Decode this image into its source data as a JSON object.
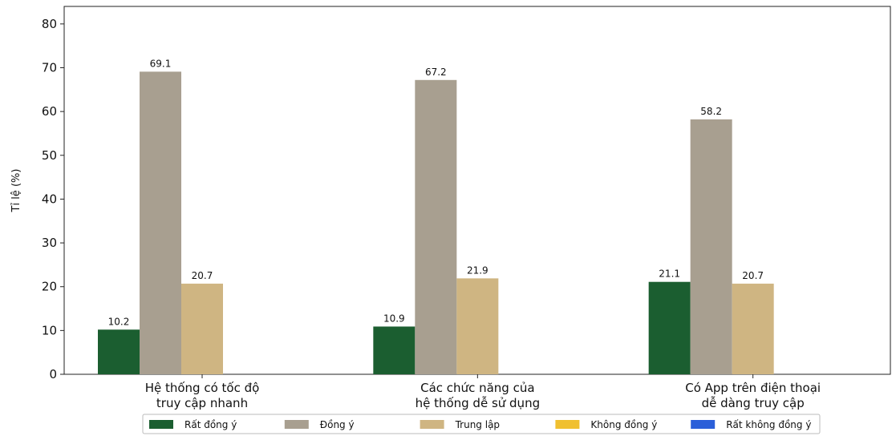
{
  "chart_data": {
    "type": "bar",
    "ylabel": "Tỉ lệ (%)",
    "ylim": [
      0,
      84
    ],
    "yticks": [
      0,
      10,
      20,
      30,
      40,
      50,
      60,
      70,
      80
    ],
    "categories": [
      [
        "Hệ thống có tốc độ",
        "truy cập nhanh"
      ],
      [
        "Các chức năng của",
        "hệ thống dễ sử dụng"
      ],
      [
        "Có App trên điện thoại",
        "dễ dàng truy cập"
      ]
    ],
    "series": [
      {
        "name": "Rất đồng ý",
        "color": "#1b5e30",
        "values": [
          10.2,
          10.9,
          21.1
        ]
      },
      {
        "name": "Đồng ý",
        "color": "#a89f90",
        "values": [
          69.1,
          67.2,
          58.2
        ]
      },
      {
        "name": "Trung lập",
        "color": "#cfb582",
        "values": [
          20.7,
          21.9,
          20.7
        ]
      },
      {
        "name": "Không đồng ý",
        "color": "#f0c030",
        "values": [
          null,
          null,
          null
        ]
      },
      {
        "name": "Rất không đồng ý",
        "color": "#2b5fd9",
        "values": [
          null,
          null,
          null
        ]
      }
    ],
    "grid": false,
    "legend_position": "bottom"
  }
}
